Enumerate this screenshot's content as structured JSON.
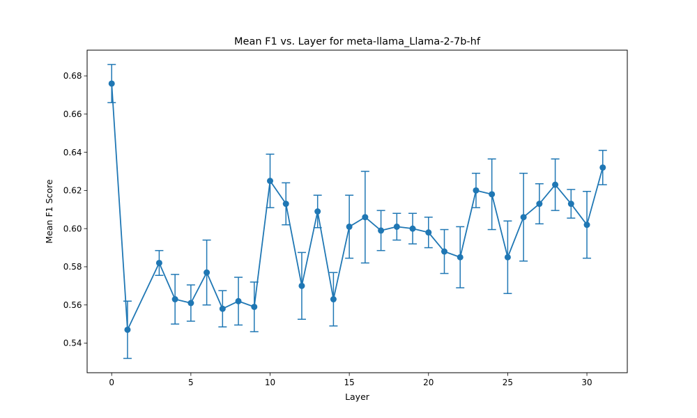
{
  "chart_data": {
    "type": "line",
    "title": "Mean F1 vs. Layer for meta-llama_Llama-2-7b-hf",
    "xlabel": "Layer",
    "ylabel": "Mean F1 Score",
    "xlim": [
      -1.55,
      32.55
    ],
    "ylim": [
      0.5245,
      0.6935
    ],
    "x_ticks": [
      0,
      5,
      10,
      15,
      20,
      25,
      30
    ],
    "y_ticks": [
      0.54,
      0.56,
      0.58,
      0.6,
      0.62,
      0.64,
      0.66,
      0.68
    ],
    "x_tick_labels": [
      "0",
      "5",
      "10",
      "15",
      "20",
      "25",
      "30"
    ],
    "y_tick_labels": [
      "0.54",
      "0.56",
      "0.58",
      "0.60",
      "0.62",
      "0.64",
      "0.66",
      "0.68"
    ],
    "grid": false,
    "color": "#1f77b4",
    "series": [
      {
        "x": [
          0,
          1,
          3,
          4,
          5,
          6,
          7,
          8,
          9,
          10,
          11,
          12,
          13,
          14,
          15,
          16,
          17,
          18,
          19,
          20,
          21,
          22,
          23,
          24,
          25,
          26,
          27,
          28,
          29,
          30,
          31
        ],
        "y": [
          0.676,
          0.547,
          0.582,
          0.563,
          0.561,
          0.577,
          0.558,
          0.562,
          0.559,
          0.625,
          0.613,
          0.57,
          0.609,
          0.563,
          0.601,
          0.606,
          0.599,
          0.601,
          0.6,
          0.598,
          0.588,
          0.585,
          0.62,
          0.618,
          0.585,
          0.606,
          0.613,
          0.623,
          0.613,
          0.602,
          0.632
        ],
        "error": [
          0.01,
          0.015,
          0.0065,
          0.013,
          0.0095,
          0.017,
          0.0095,
          0.0125,
          0.013,
          0.014,
          0.011,
          0.0175,
          0.0085,
          0.014,
          0.0165,
          0.024,
          0.0105,
          0.007,
          0.008,
          0.008,
          0.0115,
          0.016,
          0.009,
          0.0185,
          0.019,
          0.023,
          0.0105,
          0.0135,
          0.0075,
          0.0175,
          0.009
        ]
      }
    ]
  }
}
